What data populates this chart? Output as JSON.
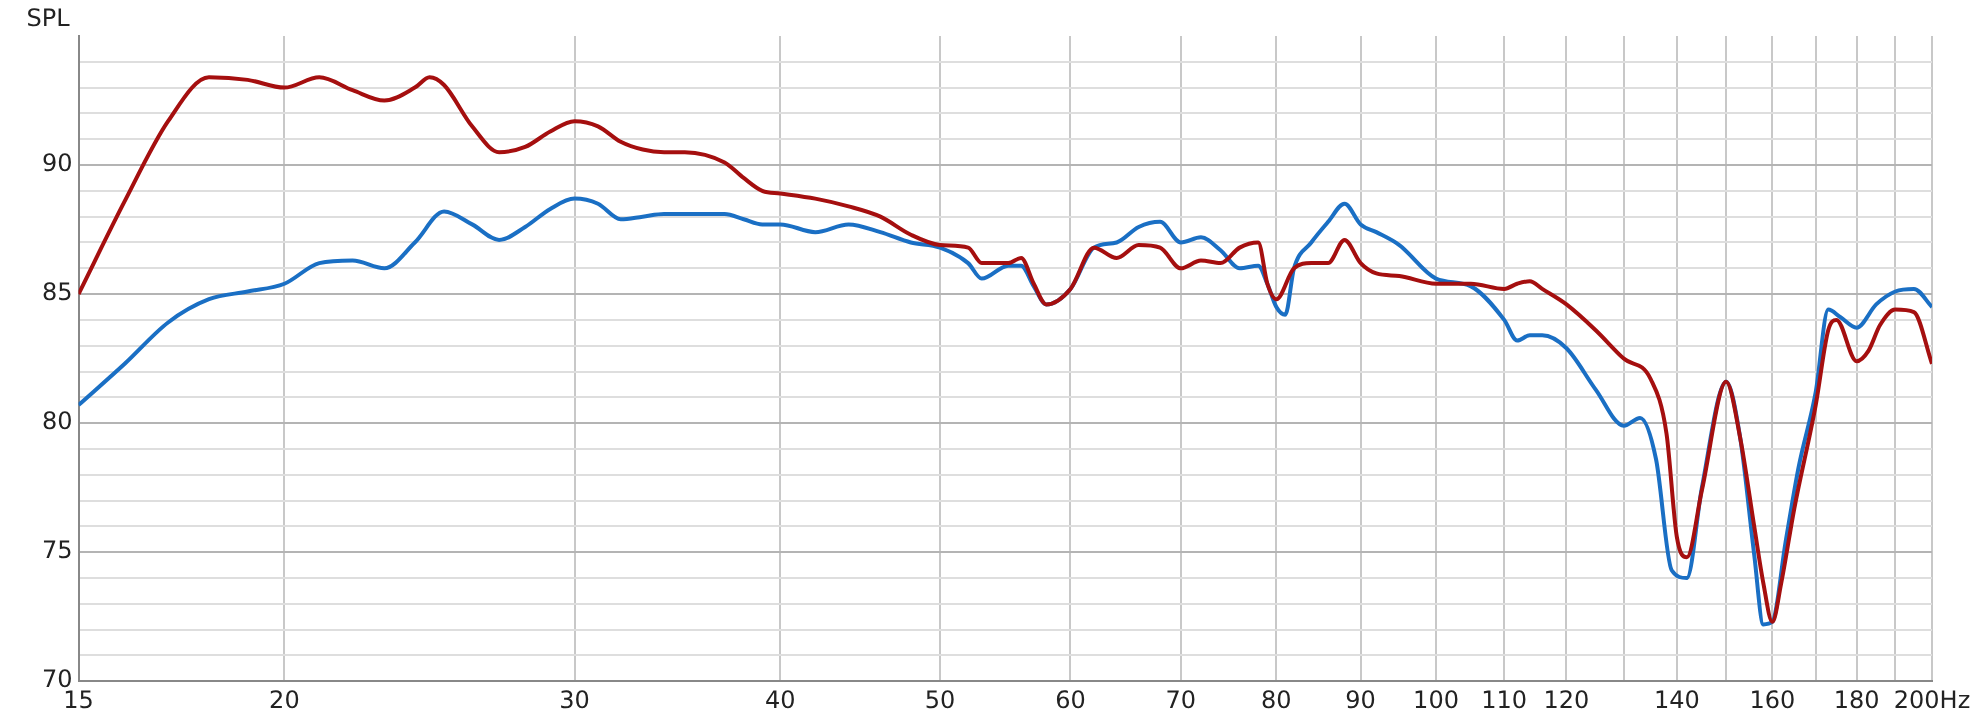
{
  "chart_data": {
    "type": "line",
    "ylabel": "SPL",
    "log": "x",
    "grid": true,
    "legend": false,
    "marker": "none",
    "line_style": "solid",
    "xlim": [
      15,
      200
    ],
    "ylim": [
      70,
      95
    ],
    "xticks": [
      15,
      20,
      30,
      40,
      50,
      60,
      70,
      80,
      90,
      100,
      110,
      120,
      {
        "value": 130,
        "label": null
      },
      140,
      {
        "value": 150,
        "label": null
      },
      160,
      {
        "value": 170,
        "label": null
      },
      180,
      {
        "value": 190,
        "label": null
      },
      {
        "value": 200,
        "label": "200Hz"
      }
    ],
    "yticks": [
      70,
      {
        "value": 71,
        "label": null
      },
      {
        "value": 72,
        "label": null
      },
      {
        "value": 73,
        "label": null
      },
      {
        "value": 74,
        "label": null
      },
      75,
      {
        "value": 76,
        "label": null
      },
      {
        "value": 77,
        "label": null
      },
      {
        "value": 78,
        "label": null
      },
      {
        "value": 79,
        "label": null
      },
      80,
      {
        "value": 81,
        "label": null
      },
      {
        "value": 82,
        "label": null
      },
      {
        "value": 83,
        "label": null
      },
      {
        "value": 84,
        "label": null
      },
      85,
      {
        "value": 86,
        "label": null
      },
      {
        "value": 87,
        "label": null
      },
      {
        "value": 88,
        "label": null
      },
      {
        "value": 89,
        "label": null
      },
      90,
      {
        "value": 91,
        "label": null
      },
      {
        "value": 92,
        "label": null
      },
      {
        "value": 93,
        "label": null
      },
      {
        "value": 94,
        "label": null
      }
    ],
    "series": [
      {
        "color": "#1a6fc4",
        "x": [
          15,
          16,
          17,
          18,
          19,
          20,
          21,
          22,
          23,
          24,
          25,
          26,
          27,
          28,
          29,
          30,
          31,
          32,
          33,
          34,
          35,
          37,
          38,
          39,
          40,
          42,
          44,
          46,
          48,
          50,
          52,
          53,
          55,
          56,
          57,
          58,
          60,
          62,
          64,
          66,
          68,
          70,
          72,
          74,
          76,
          78,
          79,
          80,
          81,
          82,
          84,
          86,
          88,
          90,
          92,
          95,
          100,
          105,
          110,
          112,
          114,
          116,
          120,
          125,
          130,
          133,
          136,
          139,
          142,
          145,
          150,
          153,
          156,
          158,
          160,
          163,
          166,
          170,
          173,
          176,
          180,
          185,
          190,
          195,
          200
        ],
        "values": [
          80.7,
          82.3,
          83.9,
          84.8,
          85.1,
          85.4,
          86.2,
          86.3,
          86.0,
          87.0,
          88.2,
          87.7,
          87.1,
          87.6,
          88.3,
          88.7,
          88.5,
          87.9,
          88.0,
          88.1,
          88.1,
          88.1,
          87.9,
          87.7,
          87.7,
          87.4,
          87.7,
          87.4,
          87.0,
          86.8,
          86.2,
          85.6,
          86.1,
          86.1,
          85.3,
          84.6,
          85.2,
          86.8,
          87.0,
          87.6,
          87.8,
          87.0,
          87.2,
          86.7,
          86.0,
          86.1,
          85.4,
          84.5,
          84.2,
          86.0,
          87.0,
          87.8,
          88.5,
          87.7,
          87.4,
          86.9,
          85.6,
          85.3,
          84.0,
          83.2,
          83.4,
          83.4,
          82.9,
          81.3,
          79.9,
          80.2,
          78.6,
          74.3,
          74.0,
          77.5,
          81.6,
          79.4,
          74.9,
          72.2,
          72.3,
          75.4,
          78.3,
          81.2,
          84.4,
          84.1,
          83.7,
          84.6,
          85.1,
          85.2,
          84.5
        ]
      },
      {
        "color": "#a50f0f",
        "x": [
          15,
          16,
          17,
          18,
          19,
          20,
          21,
          22,
          23,
          24,
          24.5,
          25,
          26,
          27,
          28,
          29,
          30,
          31,
          32,
          33,
          34,
          35,
          37,
          38,
          39,
          40,
          42,
          44,
          46,
          48,
          50,
          52,
          53,
          55,
          56,
          57,
          58,
          60,
          62,
          64,
          66,
          68,
          70,
          72,
          74,
          76,
          78,
          79,
          80,
          82,
          84,
          86,
          88,
          90,
          92,
          95,
          100,
          105,
          110,
          112,
          114,
          116,
          120,
          125,
          130,
          135,
          138,
          140,
          142,
          145,
          150,
          153,
          156,
          158,
          160,
          162,
          165,
          170,
          173,
          175,
          180,
          183,
          186,
          190,
          195,
          200
        ],
        "values": [
          85.0,
          88.6,
          91.7,
          93.4,
          93.3,
          93.0,
          93.4,
          92.9,
          92.5,
          93.0,
          93.4,
          93.1,
          91.5,
          90.5,
          90.7,
          91.3,
          91.7,
          91.5,
          90.9,
          90.6,
          90.5,
          90.5,
          90.1,
          89.5,
          89.0,
          88.9,
          88.7,
          88.4,
          88.0,
          87.3,
          86.9,
          86.8,
          86.2,
          86.2,
          86.4,
          85.4,
          84.6,
          85.2,
          86.8,
          86.4,
          86.9,
          86.8,
          86.0,
          86.3,
          86.2,
          86.8,
          87.0,
          85.4,
          84.8,
          86.0,
          86.2,
          86.2,
          87.1,
          86.2,
          85.8,
          85.7,
          85.4,
          85.4,
          85.2,
          85.4,
          85.5,
          85.2,
          84.6,
          83.6,
          82.5,
          81.7,
          79.6,
          75.6,
          74.8,
          77.4,
          81.6,
          79.4,
          76.0,
          73.8,
          72.3,
          73.8,
          76.7,
          80.7,
          83.6,
          84.0,
          82.4,
          82.8,
          83.8,
          84.4,
          84.3,
          82.3
        ]
      }
    ]
  }
}
